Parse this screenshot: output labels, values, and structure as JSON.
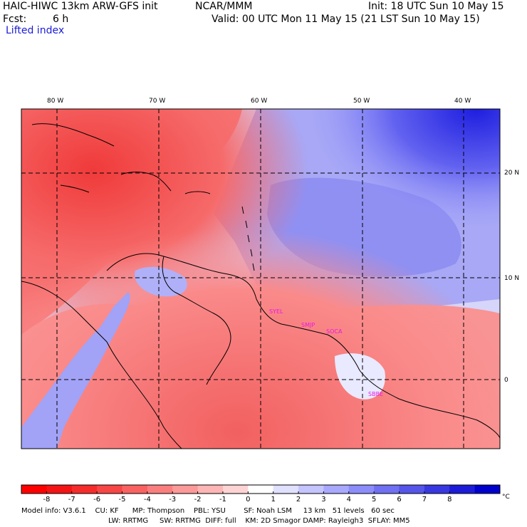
{
  "header": {
    "title_left": "HAIC-HIWC 13km ARW-GFS init",
    "org": "NCAR/MMM",
    "init": "Init: 18 UTC Sun 10 May 15",
    "fcst_label": "Fcst:",
    "fcst_value": "6 h",
    "valid": "Valid: 00 UTC Mon 11 May 15 (21 LST Sun 10 May 15)",
    "field": "Lifted index"
  },
  "map": {
    "lon_labels": [
      "80 W",
      "70 W",
      "60 W",
      "50 W",
      "40 W"
    ],
    "lat_labels": [
      "20 N",
      "10 N",
      "0"
    ],
    "stations": [
      "SYEL",
      "SMJP",
      "SOCA",
      "SBBE"
    ],
    "colors": {
      "cold_deep": "#f03232",
      "warm_light": "#c8c8ff",
      "stable_deep": "#2323e6",
      "coast": "#000000",
      "station": "#e619e6"
    }
  },
  "colorbar": {
    "ticks": [
      "-8",
      "-7",
      "-6",
      "-5",
      "-4",
      "-3",
      "-2",
      "-1",
      "0",
      "1",
      "2",
      "3",
      "4",
      "5",
      "6",
      "7",
      "8"
    ],
    "unit": "°C",
    "colors": [
      "#ff0000",
      "#f41414",
      "#f62c2c",
      "#f84545",
      "#fa6262",
      "#fb7e7e",
      "#fc9999",
      "#fdb5b5",
      "#fed3d3",
      "#ffffff",
      "#e0e0ff",
      "#c4c4ff",
      "#a8a8ff",
      "#8c8cfa",
      "#7070f2",
      "#5555ea",
      "#3838e0",
      "#1c1cd8",
      "#0000cc"
    ]
  },
  "footer": {
    "line1": "Model info: V3.6.1    CU: KF      MP: Thompson    PBL: YSU        SF: Noah LSM     13 km   51 levels   60 sec",
    "line2": "LW: RRTMG     SW: RRTMG  DIFF: full    KM: 2D Smagor DAMP: Rayleigh3  SFLAY: MM5"
  }
}
